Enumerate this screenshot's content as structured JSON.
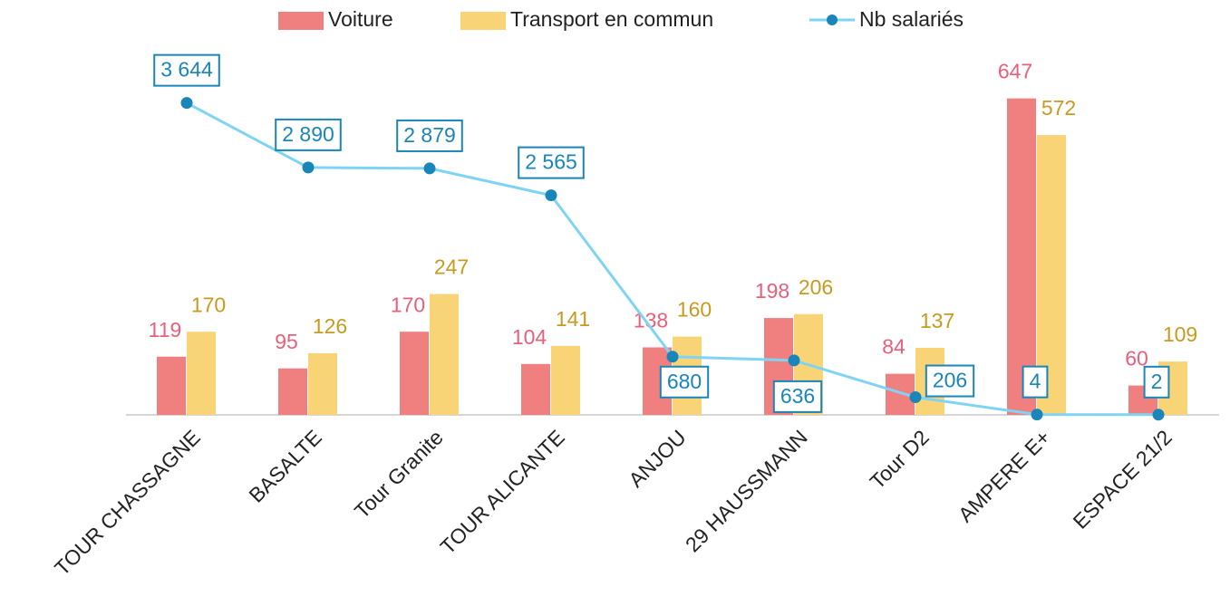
{
  "chart_data": {
    "type": "bar_line",
    "categories": [
      "TOUR CHASSAGNE",
      "BASALTE",
      "Tour Granite",
      "TOUR ALICANTE",
      "ANJOU",
      "29 HAUSSMANN",
      "Tour D2",
      "AMPERE E+",
      "ESPACE 21/2"
    ],
    "series": [
      {
        "name": "Voiture",
        "type": "bar",
        "color": "#f08080",
        "label_color": "#e8607a",
        "values": [
          119,
          95,
          170,
          104,
          138,
          198,
          84,
          647,
          60
        ]
      },
      {
        "name": "Transport en commun",
        "type": "bar",
        "color": "#f8d477",
        "label_color": "#c89a1e",
        "values": [
          170,
          126,
          247,
          141,
          160,
          206,
          137,
          572,
          109
        ]
      },
      {
        "name": "Nb salariés",
        "type": "line",
        "axis": "y2",
        "color": "#7fd4f5",
        "marker_color": "#1a85b8",
        "label_color": "#1a85b8",
        "values": [
          3644,
          2890,
          2879,
          2565,
          680,
          636,
          206,
          4,
          2
        ],
        "value_labels": [
          "3 644",
          "2 890",
          "2 879",
          "2 565",
          "680",
          "636",
          "206",
          "4",
          "2"
        ]
      }
    ],
    "ylim": [
      0,
      700
    ],
    "y2lim": [
      0,
      4000
    ]
  }
}
